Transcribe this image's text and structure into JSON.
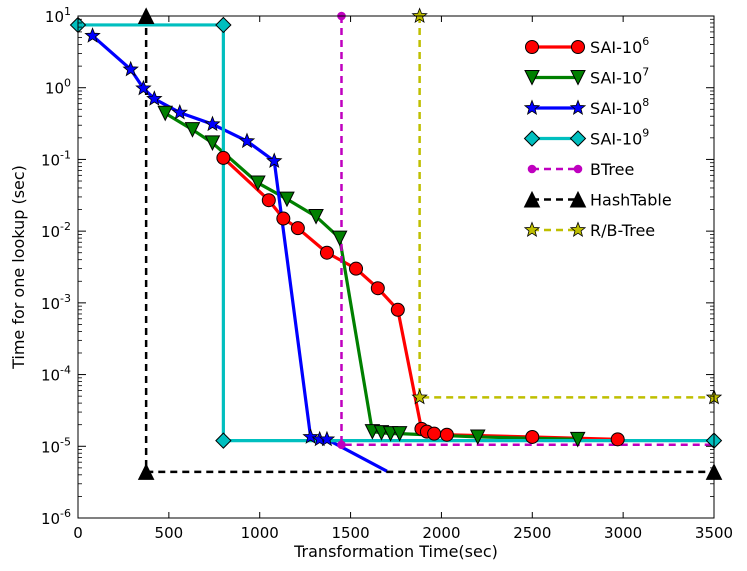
{
  "chart_data": {
    "type": "line",
    "title": "",
    "xlabel": "Transformation Time(sec)",
    "ylabel": "Time for one lookup (sec)",
    "xlim": [
      0,
      3500
    ],
    "ylim": [
      1e-06,
      10
    ],
    "yscale": "log",
    "x_ticks": [
      0,
      500,
      1000,
      1500,
      2000,
      2500,
      3000,
      3500
    ],
    "x_tick_labels": [
      "0",
      "500",
      "1000",
      "1500",
      "2000",
      "2500",
      "3000",
      "3500"
    ],
    "y_ticks": [
      1e-06,
      1e-05,
      0.0001,
      0.001,
      0.01,
      0.1,
      1,
      10
    ],
    "y_tick_labels": [
      {
        "base": "10",
        "exp": "-6"
      },
      {
        "base": "10",
        "exp": "-5"
      },
      {
        "base": "10",
        "exp": "-4"
      },
      {
        "base": "10",
        "exp": "-3"
      },
      {
        "base": "10",
        "exp": "-2"
      },
      {
        "base": "10",
        "exp": "-1"
      },
      {
        "base": "10",
        "exp": "0"
      },
      {
        "base": "10",
        "exp": "1"
      }
    ],
    "grid": false,
    "legend_position": "top-right",
    "series": [
      {
        "name": "SAI-10^6",
        "label_base": "SAI-10",
        "label_exp": "6",
        "color": "#008000",
        "line_color": "#ff0000",
        "marker": "circle",
        "marker_fill": "#ff0000",
        "dashed": false,
        "marker_idx": [
          0,
          1,
          2,
          3,
          4,
          5,
          6,
          7,
          8,
          9,
          10,
          11,
          12,
          13
        ],
        "points": [
          [
            800,
            0.105
          ],
          [
            1050,
            0.027
          ],
          [
            1130,
            0.015
          ],
          [
            1210,
            0.011
          ],
          [
            1370,
            0.005
          ],
          [
            1530,
            0.003
          ],
          [
            1650,
            0.0016
          ],
          [
            1760,
            0.0008
          ],
          [
            1890,
            1.75e-05
          ],
          [
            1920,
            1.6e-05
          ],
          [
            1960,
            1.5e-05
          ],
          [
            2030,
            1.45e-05
          ],
          [
            2500,
            1.35e-05
          ],
          [
            2970,
            1.25e-05
          ]
        ]
      },
      {
        "name": "SAI-10^7",
        "label_base": "SAI-10",
        "label_exp": "7",
        "line_color": "#008000",
        "marker": "triangle-down",
        "marker_fill": "#008000",
        "dashed": false,
        "marker_idx": [
          0,
          1,
          2,
          3,
          4,
          5,
          6,
          7,
          8,
          9,
          10,
          11,
          12
        ],
        "points": [
          [
            480,
            0.44
          ],
          [
            630,
            0.26
          ],
          [
            740,
            0.17
          ],
          [
            990,
            0.047
          ],
          [
            1150,
            0.028
          ],
          [
            1310,
            0.016
          ],
          [
            1440,
            0.008
          ],
          [
            1620,
            1.6e-05
          ],
          [
            1670,
            1.55e-05
          ],
          [
            1720,
            1.5e-05
          ],
          [
            1770,
            1.5e-05
          ],
          [
            2200,
            1.35e-05
          ],
          [
            2750,
            1.25e-05
          ]
        ]
      },
      {
        "name": "SAI-10^8",
        "label_base": "SAI-10",
        "label_exp": "8",
        "line_color": "#0000ff",
        "marker": "star",
        "marker_fill": "#0000ff",
        "dashed": false,
        "marker_idx": [
          0,
          1,
          2,
          3,
          4,
          5,
          6,
          7,
          8,
          9,
          10
        ],
        "points": [
          [
            80,
            5.3
          ],
          [
            290,
            1.8
          ],
          [
            360,
            0.98
          ],
          [
            420,
            0.7
          ],
          [
            560,
            0.45
          ],
          [
            740,
            0.31
          ],
          [
            930,
            0.18
          ],
          [
            1080,
            0.095
          ],
          [
            1280,
            1.35e-05
          ],
          [
            1330,
            1.25e-05
          ],
          [
            1370,
            1.25e-05
          ],
          [
            1700,
            4.5e-06
          ]
        ]
      },
      {
        "name": "SAI-10^9",
        "label_base": "SAI-10",
        "label_exp": "9",
        "line_color": "#00bfbf",
        "marker": "diamond",
        "marker_fill": "#00bfbf",
        "dashed": false,
        "marker_idx": [
          0,
          1,
          2,
          3
        ],
        "points": [
          [
            0,
            7.5
          ],
          [
            800,
            7.5
          ],
          [
            800,
            1.2e-05
          ],
          [
            3500,
            1.2e-05
          ]
        ]
      },
      {
        "name": "BTree",
        "label_base": "BTree",
        "label_exp": "",
        "line_color": "#bf00bf",
        "marker": "dot",
        "marker_fill": "#bf00bf",
        "dashed": true,
        "marker_idx": [
          0,
          1
        ],
        "points": [
          [
            1450,
            10
          ],
          [
            1450,
            1.05e-05
          ],
          [
            3500,
            1.05e-05
          ]
        ]
      },
      {
        "name": "HashTable",
        "label_base": "HashTable",
        "label_exp": "",
        "line_color": "#000000",
        "marker": "triangle-up",
        "marker_fill": "#000000",
        "dashed": true,
        "marker_idx": [
          0,
          1,
          2
        ],
        "points": [
          [
            375,
            10
          ],
          [
            375,
            4.4e-06
          ],
          [
            3500,
            4.4e-06
          ]
        ]
      },
      {
        "name": "R/B-Tree",
        "label_base": "R/B-Tree",
        "label_exp": "",
        "line_color": "#bfbf00",
        "marker": "star",
        "marker_fill": "#bfbf00",
        "dashed": true,
        "marker_idx": [
          0,
          1,
          2
        ],
        "points": [
          [
            1880,
            10
          ],
          [
            1880,
            4.8e-05
          ],
          [
            3500,
            4.8e-05
          ]
        ]
      }
    ]
  }
}
